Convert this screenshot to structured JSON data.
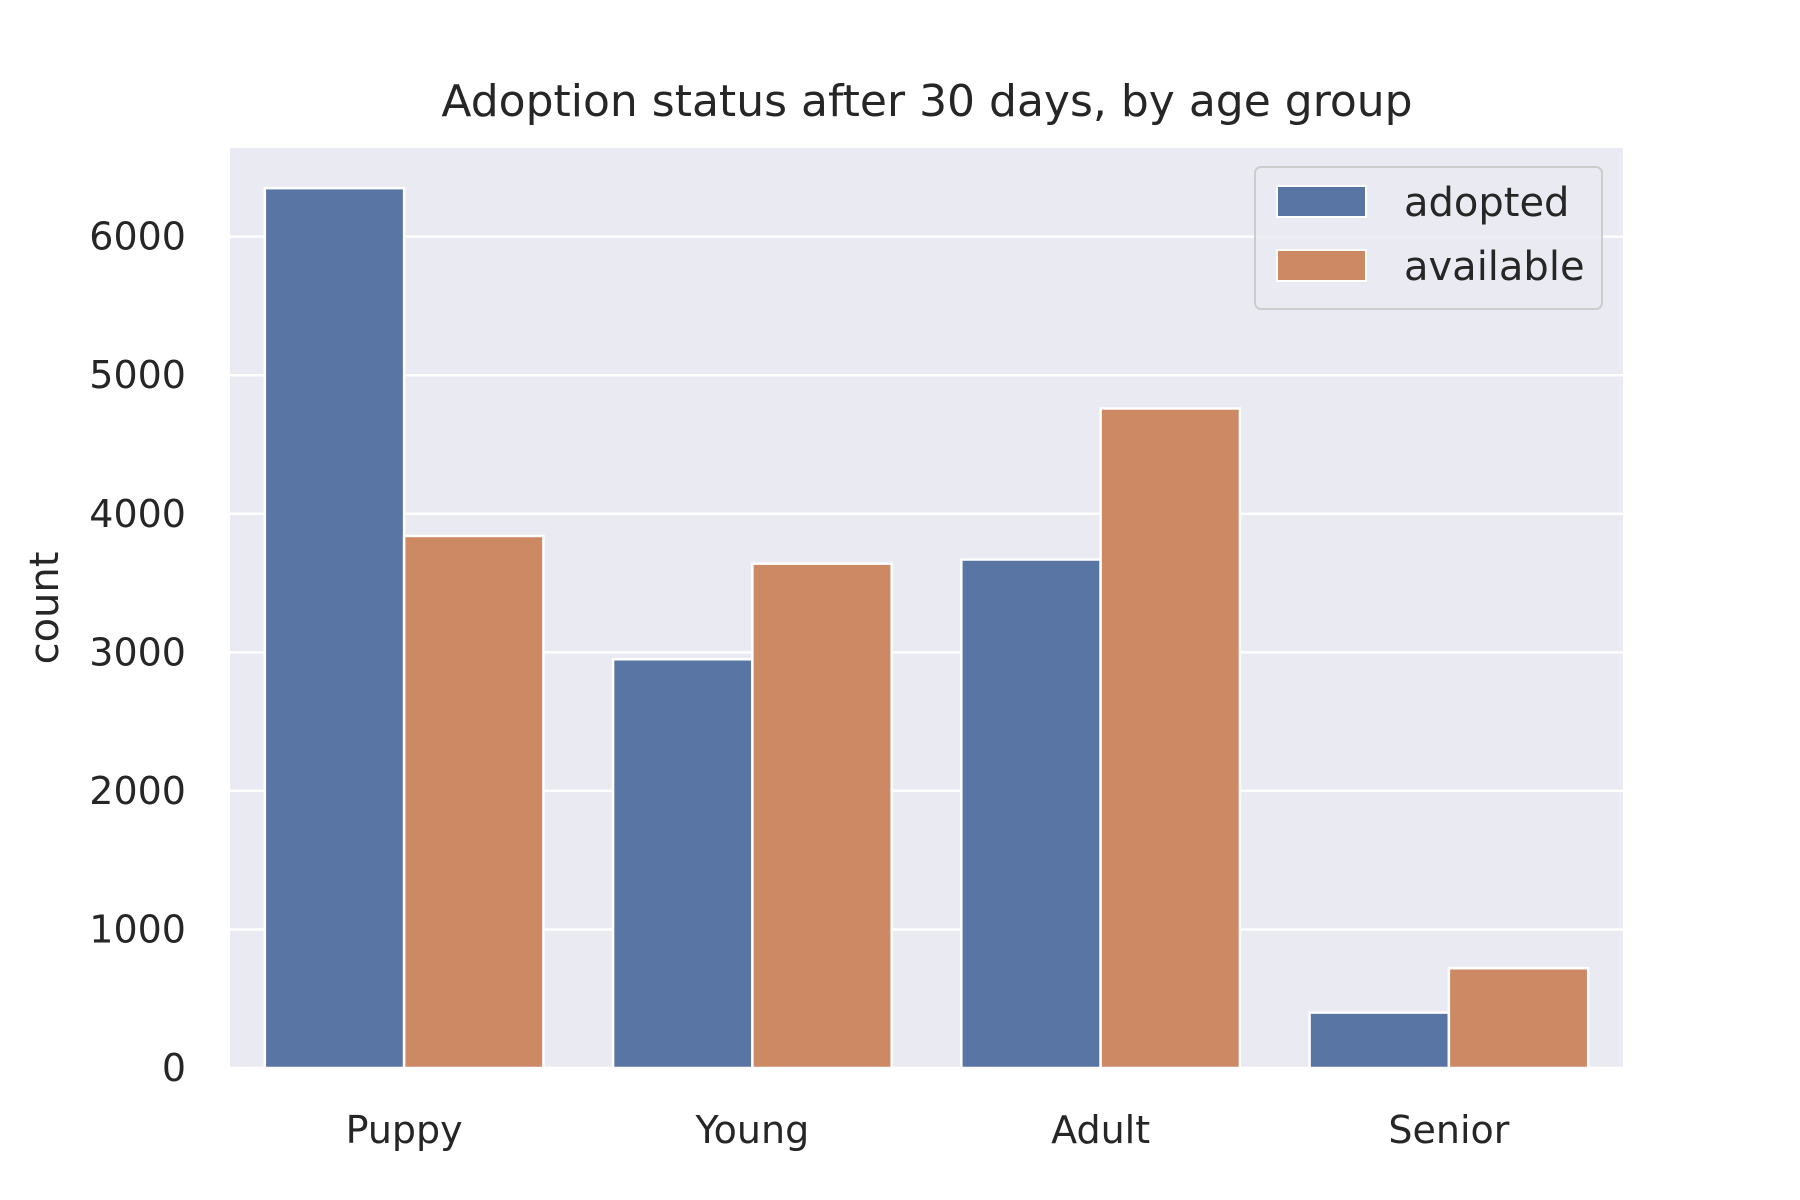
{
  "chart_data": {
    "type": "bar",
    "title": "Adoption status after 30 days, by age group",
    "xlabel": "",
    "ylabel": "count",
    "categories": [
      "Puppy",
      "Young",
      "Adult",
      "Senior"
    ],
    "series": [
      {
        "name": "adopted",
        "color": "#5975a4",
        "values": [
          6350,
          2950,
          3670,
          400
        ]
      },
      {
        "name": "available",
        "color": "#cc8963",
        "values": [
          3840,
          3640,
          4760,
          720
        ]
      }
    ],
    "ylim": [
      0,
      6640
    ],
    "yticks": [
      0,
      1000,
      2000,
      3000,
      4000,
      5000,
      6000
    ],
    "grid": true,
    "legend_position": "top-right",
    "background_color": "#eaeaf2"
  }
}
